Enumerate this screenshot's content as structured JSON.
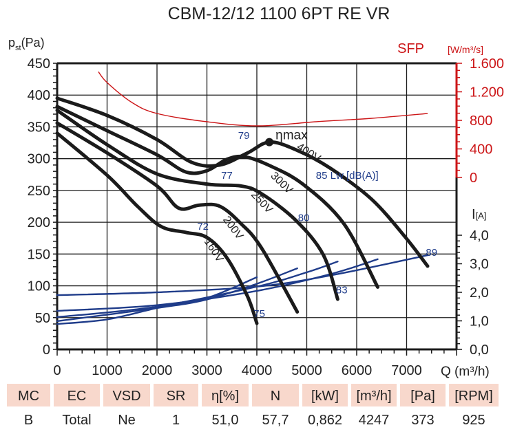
{
  "chart_data": {
    "type": "line",
    "title": "CBM-12/12 1100 6PT RE VR",
    "xlabel": "Q (m³/h)",
    "ylabel_main": "p",
    "ylabel_sub": "st",
    "ylabel_unit": "(Pa)",
    "sfp_label": "SFP",
    "sfp_unit": "[W/m³/s]",
    "current_label": "I",
    "current_unit": "[A]",
    "xlim": [
      0,
      8000
    ],
    "ylim": [
      0,
      450
    ],
    "sfp_lim": [
      0,
      1600
    ],
    "current_lim": [
      0,
      4
    ],
    "grid": true,
    "x_ticks": [
      "0",
      "1000",
      "2000",
      "3000",
      "4000",
      "5000",
      "6000",
      "7000"
    ],
    "x_tick_values": [
      0,
      1000,
      2000,
      3000,
      4000,
      5000,
      6000,
      7000
    ],
    "y_ticks": [
      "0",
      "50",
      "100",
      "150",
      "200",
      "250",
      "300",
      "350",
      "400",
      "450"
    ],
    "y_tick_values": [
      0,
      50,
      100,
      150,
      200,
      250,
      300,
      350,
      400,
      450
    ],
    "sfp_ticks": [
      "0",
      "400",
      "800",
      "1.200",
      "1.600"
    ],
    "sfp_tick_values": [
      0,
      400,
      800,
      1200,
      1600
    ],
    "current_ticks": [
      "0,0",
      "1,0",
      "2,0",
      "3,0",
      "4,0"
    ],
    "current_tick_values": [
      0,
      1,
      2,
      3,
      4
    ],
    "pressure_series": [
      {
        "name": "400V",
        "points": [
          [
            0,
            395
          ],
          [
            1000,
            368
          ],
          [
            2000,
            330
          ],
          [
            2700,
            294
          ],
          [
            3260,
            290
          ],
          [
            3815,
            309
          ],
          [
            4250,
            326
          ],
          [
            4780,
            314
          ],
          [
            5470,
            285
          ],
          [
            6300,
            236
          ],
          [
            6980,
            176
          ],
          [
            7420,
            131
          ]
        ]
      },
      {
        "name": "300V",
        "points": [
          [
            0,
            382
          ],
          [
            1000,
            344
          ],
          [
            2000,
            306
          ],
          [
            2580,
            279
          ],
          [
            3000,
            281
          ],
          [
            3400,
            299
          ],
          [
            3750,
            303
          ],
          [
            4230,
            290
          ],
          [
            4920,
            260
          ],
          [
            5740,
            198
          ],
          [
            6420,
            98
          ]
        ]
      },
      {
        "name": "250V",
        "points": [
          [
            0,
            376
          ],
          [
            1000,
            322
          ],
          [
            2000,
            276
          ],
          [
            3000,
            260
          ],
          [
            3680,
            257
          ],
          [
            4090,
            245
          ],
          [
            4780,
            203
          ],
          [
            5330,
            149
          ],
          [
            5620,
            79
          ]
        ]
      },
      {
        "name": "200V",
        "points": [
          [
            0,
            356
          ],
          [
            1000,
            309
          ],
          [
            2000,
            257
          ],
          [
            2440,
            222
          ],
          [
            2850,
            227
          ],
          [
            3260,
            225
          ],
          [
            3680,
            198
          ],
          [
            4090,
            160
          ],
          [
            4810,
            59
          ]
        ]
      },
      {
        "name": "160V",
        "points": [
          [
            0,
            340
          ],
          [
            1000,
            274
          ],
          [
            1610,
            225
          ],
          [
            2090,
            193
          ],
          [
            2580,
            184
          ],
          [
            3000,
            176
          ],
          [
            3400,
            144
          ],
          [
            3810,
            84
          ],
          [
            4000,
            41
          ]
        ]
      }
    ],
    "current_series": [
      {
        "name": "400V",
        "points": [
          [
            0,
            1.9
          ],
          [
            2000,
            2.0
          ],
          [
            4000,
            2.2
          ],
          [
            5500,
            2.6
          ],
          [
            7420,
            3.3
          ]
        ]
      },
      {
        "name": "300V",
        "points": [
          [
            0,
            1.35
          ],
          [
            2000,
            1.55
          ],
          [
            4000,
            2.05
          ],
          [
            5500,
            2.65
          ],
          [
            6420,
            3.16
          ]
        ]
      },
      {
        "name": "250V",
        "points": [
          [
            0,
            1.13
          ],
          [
            2000,
            1.5
          ],
          [
            4000,
            2.2
          ],
          [
            5000,
            2.7
          ],
          [
            5620,
            3.08
          ]
        ]
      },
      {
        "name": "200V",
        "points": [
          [
            0,
            0.99
          ],
          [
            2000,
            1.45
          ],
          [
            3000,
            1.75
          ],
          [
            4000,
            2.3
          ],
          [
            4810,
            2.84
          ]
        ]
      },
      {
        "name": "160V",
        "points": [
          [
            0,
            0.89
          ],
          [
            1000,
            1.05
          ],
          [
            2000,
            1.45
          ],
          [
            3000,
            1.8
          ],
          [
            4000,
            2.53
          ]
        ]
      }
    ],
    "sfp_series": {
      "name": "SFP",
      "points": [
        [
          826,
          1481
        ],
        [
          1000,
          1330
        ],
        [
          1500,
          1050
        ],
        [
          2000,
          896
        ],
        [
          3000,
          781
        ],
        [
          4020,
          723
        ],
        [
          5190,
          781
        ],
        [
          6300,
          829
        ],
        [
          7420,
          896
        ]
      ]
    },
    "eta_max": {
      "label": "ηmax",
      "q": 4250,
      "p": 326
    },
    "voltage_labels": [
      {
        "text": "400V",
        "q": 5000,
        "p": 305,
        "angle": 33
      },
      {
        "text": "300V",
        "q": 4450,
        "p": 258,
        "angle": 44
      },
      {
        "text": "250V",
        "q": 4050,
        "p": 228,
        "angle": 47
      },
      {
        "text": "200V",
        "q": 3470,
        "p": 188,
        "angle": 53
      },
      {
        "text": "160V",
        "q": 3080,
        "p": 153,
        "angle": 57
      }
    ],
    "noise_labels": [
      {
        "text": "79",
        "q": 3740,
        "p": 331
      },
      {
        "text": "77",
        "q": 3400,
        "p": 268
      },
      {
        "text": "72",
        "q": 2920,
        "p": 188
      },
      {
        "text": "80",
        "q": 4940,
        "p": 202
      },
      {
        "text": "75",
        "q": 4050,
        "p": 51
      },
      {
        "text": "83",
        "q": 5700,
        "p": 88
      },
      {
        "text": "89",
        "q": 7500,
        "p": 147
      },
      {
        "text": "85 Lw [dB(A)]",
        "q": 5810,
        "p": 268
      }
    ]
  },
  "table": {
    "headers": [
      "MC",
      "EC",
      "VSD",
      "SR",
      "η[%]",
      "N",
      "[kW]",
      "[m³/h]",
      "[Pa]",
      "[RPM]"
    ],
    "values": [
      "B",
      "Total",
      "Ne",
      "1",
      "51,0",
      "57,7",
      "0,862",
      "4247",
      "373",
      "925"
    ]
  }
}
